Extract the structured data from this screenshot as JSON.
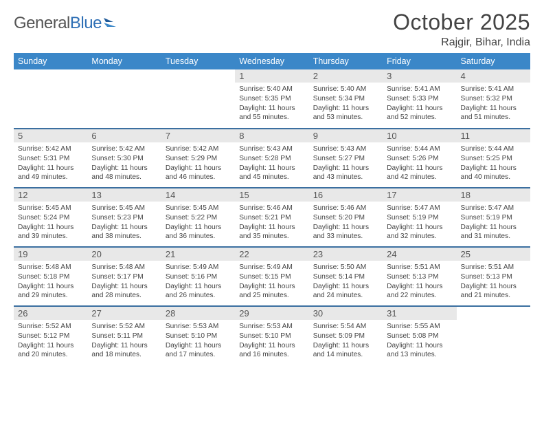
{
  "brand": {
    "name_a": "General",
    "name_b": "Blue"
  },
  "title": "October 2025",
  "location": "Rajgir, Bihar, India",
  "colors": {
    "header_bg": "#3b87c8",
    "row_border": "#3b6fa0",
    "daynum_bg": "#e8e8e8"
  },
  "weekdays": [
    "Sunday",
    "Monday",
    "Tuesday",
    "Wednesday",
    "Thursday",
    "Friday",
    "Saturday"
  ],
  "weeks": [
    [
      null,
      null,
      null,
      {
        "n": "1",
        "sr": "5:40 AM",
        "ss": "5:35 PM",
        "dl": "11 hours and 55 minutes."
      },
      {
        "n": "2",
        "sr": "5:40 AM",
        "ss": "5:34 PM",
        "dl": "11 hours and 53 minutes."
      },
      {
        "n": "3",
        "sr": "5:41 AM",
        "ss": "5:33 PM",
        "dl": "11 hours and 52 minutes."
      },
      {
        "n": "4",
        "sr": "5:41 AM",
        "ss": "5:32 PM",
        "dl": "11 hours and 51 minutes."
      }
    ],
    [
      {
        "n": "5",
        "sr": "5:42 AM",
        "ss": "5:31 PM",
        "dl": "11 hours and 49 minutes."
      },
      {
        "n": "6",
        "sr": "5:42 AM",
        "ss": "5:30 PM",
        "dl": "11 hours and 48 minutes."
      },
      {
        "n": "7",
        "sr": "5:42 AM",
        "ss": "5:29 PM",
        "dl": "11 hours and 46 minutes."
      },
      {
        "n": "8",
        "sr": "5:43 AM",
        "ss": "5:28 PM",
        "dl": "11 hours and 45 minutes."
      },
      {
        "n": "9",
        "sr": "5:43 AM",
        "ss": "5:27 PM",
        "dl": "11 hours and 43 minutes."
      },
      {
        "n": "10",
        "sr": "5:44 AM",
        "ss": "5:26 PM",
        "dl": "11 hours and 42 minutes."
      },
      {
        "n": "11",
        "sr": "5:44 AM",
        "ss": "5:25 PM",
        "dl": "11 hours and 40 minutes."
      }
    ],
    [
      {
        "n": "12",
        "sr": "5:45 AM",
        "ss": "5:24 PM",
        "dl": "11 hours and 39 minutes."
      },
      {
        "n": "13",
        "sr": "5:45 AM",
        "ss": "5:23 PM",
        "dl": "11 hours and 38 minutes."
      },
      {
        "n": "14",
        "sr": "5:45 AM",
        "ss": "5:22 PM",
        "dl": "11 hours and 36 minutes."
      },
      {
        "n": "15",
        "sr": "5:46 AM",
        "ss": "5:21 PM",
        "dl": "11 hours and 35 minutes."
      },
      {
        "n": "16",
        "sr": "5:46 AM",
        "ss": "5:20 PM",
        "dl": "11 hours and 33 minutes."
      },
      {
        "n": "17",
        "sr": "5:47 AM",
        "ss": "5:19 PM",
        "dl": "11 hours and 32 minutes."
      },
      {
        "n": "18",
        "sr": "5:47 AM",
        "ss": "5:19 PM",
        "dl": "11 hours and 31 minutes."
      }
    ],
    [
      {
        "n": "19",
        "sr": "5:48 AM",
        "ss": "5:18 PM",
        "dl": "11 hours and 29 minutes."
      },
      {
        "n": "20",
        "sr": "5:48 AM",
        "ss": "5:17 PM",
        "dl": "11 hours and 28 minutes."
      },
      {
        "n": "21",
        "sr": "5:49 AM",
        "ss": "5:16 PM",
        "dl": "11 hours and 26 minutes."
      },
      {
        "n": "22",
        "sr": "5:49 AM",
        "ss": "5:15 PM",
        "dl": "11 hours and 25 minutes."
      },
      {
        "n": "23",
        "sr": "5:50 AM",
        "ss": "5:14 PM",
        "dl": "11 hours and 24 minutes."
      },
      {
        "n": "24",
        "sr": "5:51 AM",
        "ss": "5:13 PM",
        "dl": "11 hours and 22 minutes."
      },
      {
        "n": "25",
        "sr": "5:51 AM",
        "ss": "5:13 PM",
        "dl": "11 hours and 21 minutes."
      }
    ],
    [
      {
        "n": "26",
        "sr": "5:52 AM",
        "ss": "5:12 PM",
        "dl": "11 hours and 20 minutes."
      },
      {
        "n": "27",
        "sr": "5:52 AM",
        "ss": "5:11 PM",
        "dl": "11 hours and 18 minutes."
      },
      {
        "n": "28",
        "sr": "5:53 AM",
        "ss": "5:10 PM",
        "dl": "11 hours and 17 minutes."
      },
      {
        "n": "29",
        "sr": "5:53 AM",
        "ss": "5:10 PM",
        "dl": "11 hours and 16 minutes."
      },
      {
        "n": "30",
        "sr": "5:54 AM",
        "ss": "5:09 PM",
        "dl": "11 hours and 14 minutes."
      },
      {
        "n": "31",
        "sr": "5:55 AM",
        "ss": "5:08 PM",
        "dl": "11 hours and 13 minutes."
      },
      null
    ]
  ],
  "labels": {
    "sunrise": "Sunrise:",
    "sunset": "Sunset:",
    "daylight": "Daylight:"
  }
}
